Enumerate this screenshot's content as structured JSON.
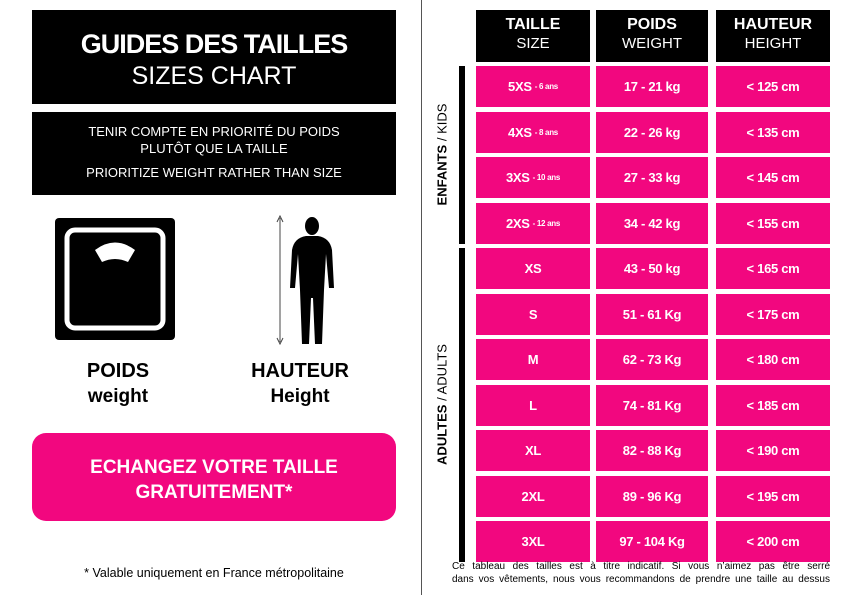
{
  "left": {
    "title": "GUIDES DES TAILLES",
    "subtitle": "SIZES CHART",
    "notice": [
      "TENIR COMPTE EN PRIORITÉ DU POIDS",
      "PLUTÔT QUE LA TAILLE",
      "PRIORITIZE WEIGHT RATHER THAN SIZE"
    ],
    "weight_label": "POIDS",
    "weight_sub": "weight",
    "height_label": "HAUTEUR",
    "height_sub": "Height",
    "button": [
      "ECHANGEZ VOTRE TAILLE",
      "GRATUITEMENT*"
    ],
    "footnote": "* Valable uniquement en France métropolitaine"
  },
  "table": {
    "headers": [
      [
        "TAILLE",
        "SIZE"
      ],
      [
        "POIDS",
        "WEIGHT"
      ],
      [
        "HAUTEUR",
        "HEIGHT"
      ]
    ],
    "groups": [
      {
        "label": "ENFANTS",
        "sub": "/ KIDS",
        "rows": 4
      },
      {
        "label": "ADULTES",
        "sub": "/ ADULTS",
        "rows": 7
      }
    ],
    "rows": [
      [
        "5XS",
        "- 6 ans",
        "17 - 21 kg",
        "< 125 cm"
      ],
      [
        "4XS",
        "- 8 ans",
        "22 - 26 kg",
        "< 135 cm"
      ],
      [
        "3XS",
        "- 10 ans",
        "27 - 33 kg",
        "< 145 cm"
      ],
      [
        "2XS",
        "- 12 ans",
        "34 - 42 kg",
        "< 155 cm"
      ],
      [
        "XS",
        null,
        "43 - 50 kg",
        "< 165 cm"
      ],
      [
        "S",
        null,
        "51 - 61 Kg",
        "< 175 cm"
      ],
      [
        "M",
        null,
        "62 - 73 Kg",
        "< 180 cm"
      ],
      [
        "L",
        null,
        "74 - 81 Kg",
        "< 185 cm"
      ],
      [
        "XL",
        null,
        "82 - 88 Kg",
        "< 190 cm"
      ],
      [
        "2XL",
        null,
        "89 - 96 Kg",
        "< 195 cm"
      ],
      [
        "3XL",
        null,
        "97 - 104 Kg",
        "< 200 cm"
      ]
    ],
    "footnote": [
      "Ce tableau des tailles est à titre indicatif. Si vous n’aimez pas être serré",
      "dans vos vêtements, nous vous recommandons de prendre une taille au dessus"
    ]
  }
}
